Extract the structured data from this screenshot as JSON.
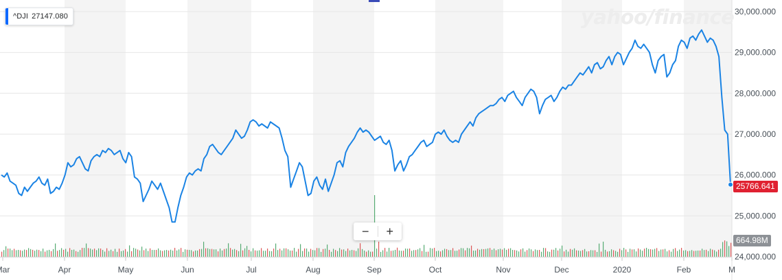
{
  "legend": {
    "symbol": "^DJI",
    "value": "27147.080",
    "color": "#0f69ff"
  },
  "watermark": "yahoo/finance",
  "last_price_tag": "25766.641",
  "volume_tag": "664.98M",
  "zoom": {
    "out_label": "−",
    "in_label": "+"
  },
  "colors": {
    "line": "#1a83e4",
    "shade": "#f4f4f4",
    "vol_up": "#3a9e5a",
    "vol_down": "#d63a3a",
    "price_tag": "#e02131",
    "volume_tag": "#8d9196"
  },
  "chart_data": {
    "type": "line",
    "series": [
      {
        "name": "^DJI",
        "values": [
          26000,
          25950,
          26050,
          25850,
          25800,
          25750,
          25550,
          25500,
          25700,
          25600,
          25700,
          25800,
          25850,
          25950,
          25800,
          25750,
          25900,
          25550,
          25600,
          25700,
          25650,
          25800,
          26000,
          26300,
          26200,
          26250,
          26400,
          26450,
          26300,
          26150,
          26100,
          26350,
          26450,
          26500,
          26450,
          26600,
          26550,
          26650,
          26600,
          26500,
          26550,
          26600,
          26400,
          26300,
          26550,
          26450,
          25950,
          25900,
          25800,
          25350,
          25500,
          25650,
          25850,
          25750,
          25650,
          25800,
          25600,
          25400,
          25200,
          24850,
          24850,
          25200,
          25500,
          25700,
          25950,
          26050,
          26000,
          26100,
          26150,
          26100,
          26400,
          26500,
          26700,
          26750,
          26650,
          26550,
          26500,
          26600,
          26700,
          26800,
          26900,
          27100,
          27000,
          26900,
          26950,
          27100,
          27300,
          27350,
          27300,
          27200,
          27250,
          27200,
          27150,
          27300,
          27250,
          27200,
          27150,
          26900,
          26600,
          26450,
          25700,
          25900,
          26100,
          26300,
          26200,
          25850,
          25500,
          25550,
          25850,
          25950,
          25750,
          25650,
          25900,
          25600,
          25800,
          26000,
          26300,
          26350,
          26200,
          26550,
          26700,
          26800,
          26900,
          27050,
          27150,
          27050,
          27100,
          27050,
          26950,
          26850,
          26900,
          26950,
          26800,
          26750,
          26850,
          26600,
          26100,
          26250,
          26350,
          26100,
          26250,
          26450,
          26500,
          26600,
          26700,
          26800,
          26850,
          26700,
          26750,
          26800,
          27000,
          27050,
          27000,
          27100,
          26950,
          26850,
          26800,
          26850,
          26800,
          27000,
          27100,
          27200,
          27300,
          27200,
          27400,
          27500,
          27550,
          27600,
          27650,
          27700,
          27700,
          27750,
          27850,
          27900,
          27800,
          27950,
          28000,
          28050,
          27900,
          27800,
          27700,
          27900,
          28000,
          28100,
          28050,
          27900,
          27500,
          27700,
          27850,
          27900,
          27950,
          27800,
          27900,
          28050,
          28150,
          28100,
          28200,
          28200,
          28300,
          28400,
          28500,
          28450,
          28550,
          28650,
          28500,
          28700,
          28750,
          28600,
          28650,
          28800,
          28900,
          28700,
          28900,
          29000,
          28950,
          28700,
          28850,
          29000,
          29100,
          29300,
          29150,
          29100,
          29200,
          29100,
          29000,
          28700,
          28500,
          28800,
          28900,
          28950,
          28400,
          28500,
          28700,
          28800,
          29150,
          29300,
          29250,
          29100,
          29350,
          29400,
          29300,
          29450,
          29550,
          29400,
          29250,
          29350,
          29300,
          29150,
          28900,
          27900,
          27100,
          27000,
          25766.641
        ]
      }
    ],
    "x_ticks": [
      "Mar",
      "Apr",
      "May",
      "Jun",
      "Jul",
      "Aug",
      "Sep",
      "Oct",
      "Nov",
      "Dec",
      "2020",
      "Feb",
      "M"
    ],
    "y_ticks": [
      "30,000.000",
      "29,000.000",
      "28,000.000",
      "27,000.000",
      "26,000.000",
      "25,000.000",
      "24,000.000"
    ],
    "ylim": [
      24000,
      30200
    ],
    "volume_spikes": [
      8,
      79,
      124,
      188,
      205,
      297,
      331,
      350,
      359,
      402,
      438,
      477,
      525,
      546,
      552,
      578,
      616,
      685,
      817,
      873,
      1054,
      1058
    ]
  }
}
